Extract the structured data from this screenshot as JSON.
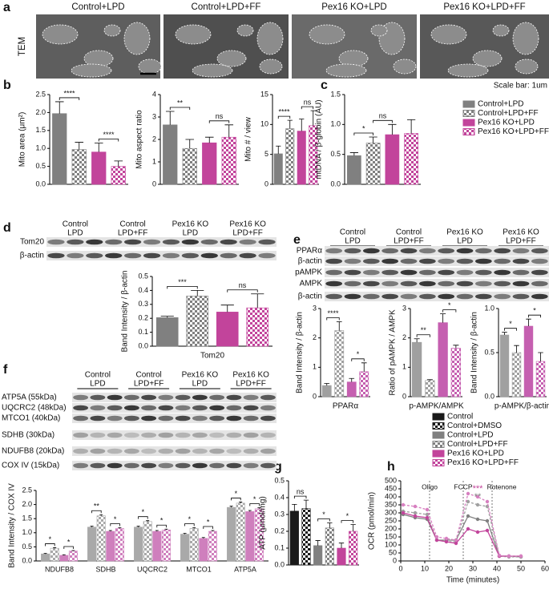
{
  "figure": {
    "panel_labels": [
      "a",
      "b",
      "c",
      "d",
      "e",
      "f",
      "g",
      "h"
    ],
    "tem": {
      "label": "TEM",
      "titles": [
        "Control+LPD",
        "Control+LPD+FF",
        "Pex16 KO+LPD",
        "Pex16 KO+LPD+FF"
      ],
      "scale_note": "Scale bar: 1um"
    },
    "legend_bc": [
      {
        "name": "Control+LPD",
        "color": "#808080",
        "pattern": "solid"
      },
      {
        "name": "Control+LPD+FF",
        "color": "#808080",
        "pattern": "checker"
      },
      {
        "name": "Pex16 KO+LPD",
        "color": "#c2449b",
        "pattern": "solid"
      },
      {
        "name": "Pex16 KO+LPD+FF",
        "color": "#c2449b",
        "pattern": "checker"
      }
    ],
    "legend_gh": [
      {
        "name": "Control",
        "color": "#1a1a1a",
        "pattern": "solid"
      },
      {
        "name": "Control+DMSO",
        "color": "#1a1a1a",
        "pattern": "checker"
      },
      {
        "name": "Control+LPD",
        "color": "#808080",
        "pattern": "solid"
      },
      {
        "name": "Control+LPD+FF",
        "color": "#808080",
        "pattern": "checker"
      },
      {
        "name": "Pex16 KO+LPD",
        "color": "#c2449b",
        "pattern": "solid"
      },
      {
        "name": "Pex16 KO+LPD+FF",
        "color": "#c2449b",
        "pattern": "checker"
      }
    ],
    "blot_d": {
      "lanes": [
        [
          "Control",
          "LPD"
        ],
        [
          "Control",
          "LPD+FF"
        ],
        [
          "Pex16 KO",
          "LPD"
        ],
        [
          "Pex16 KO",
          "LPD+FF"
        ]
      ],
      "rows": [
        "Tom20",
        "β-actin"
      ]
    },
    "blot_e": {
      "lanes": [
        [
          "Control",
          "LPD"
        ],
        [
          "Control",
          "LPD+FF"
        ],
        [
          "Pex16 KO",
          "LPD"
        ],
        [
          "Pex16 KO",
          "LPD+FF"
        ]
      ],
      "rows": [
        "PPARα",
        "β-actin",
        "pAMPK",
        "AMPK",
        "β-actin"
      ]
    },
    "blot_f": {
      "lanes": [
        [
          "Control",
          "LPD"
        ],
        [
          "Control",
          "LPD+FF"
        ],
        [
          "Pex16 KO",
          "LPD"
        ],
        [
          "Pex16 KO",
          "LPD+FF"
        ]
      ],
      "rows": [
        "ATP5A (55kDa)",
        "UQCRC2 (48kDa)",
        "MTCO1 (40kDa)",
        "SDHB (30kDa)",
        "NDUFB8 (20kDa)",
        "COX IV (15kDa)"
      ]
    }
  },
  "chart_data": [
    {
      "type": "bar",
      "ylabel": "Mito area (μm²)",
      "values": [
        1.97,
        0.97,
        0.9,
        0.5
      ],
      "errors": [
        0.33,
        0.2,
        0.25,
        0.15
      ],
      "colors": [
        "#808080",
        "#808080",
        "#c2449b",
        "#c2449b"
      ],
      "patterns": [
        "solid",
        "checker",
        "solid",
        "checker"
      ],
      "ylim": [
        0,
        2.5
      ],
      "yticks": [
        {
          "value": 0,
          "label": "0.0"
        },
        0.5,
        {
          "value": 1,
          "label": "1.0"
        },
        1.5,
        {
          "value": 2,
          "label": "2.0"
        },
        2.5
      ],
      "annotations": [
        {
          "text": "****",
          "between": [
            0,
            1
          ]
        },
        {
          "text": "****",
          "between": [
            2,
            3
          ]
        }
      ]
    },
    {
      "type": "bar",
      "ylabel": "Mito aspect ratio",
      "values": [
        2.65,
        1.6,
        1.85,
        2.1
      ],
      "errors": [
        0.6,
        0.4,
        0.25,
        0.55
      ],
      "colors": [
        "#808080",
        "#808080",
        "#c2449b",
        "#c2449b"
      ],
      "patterns": [
        "solid",
        "checker",
        "solid",
        "checker"
      ],
      "ylim": [
        0,
        4
      ],
      "yticks": [
        0,
        1,
        2,
        3,
        4
      ],
      "annotations": [
        {
          "text": "**",
          "between": [
            0,
            1
          ]
        },
        {
          "text": "ns",
          "between": [
            2,
            3
          ]
        }
      ]
    },
    {
      "type": "bar",
      "ylabel": "Mito # / view",
      "values": [
        5.1,
        9.3,
        8.9,
        9.8
      ],
      "errors": [
        1.3,
        1.4,
        2.0,
        2.5
      ],
      "colors": [
        "#808080",
        "#808080",
        "#c2449b",
        "#c2449b"
      ],
      "patterns": [
        "solid",
        "checker",
        "solid",
        "checker"
      ],
      "ylim": [
        0,
        15
      ],
      "yticks": [
        0,
        5,
        10,
        15
      ],
      "annotations": [
        {
          "text": "****",
          "between": [
            0,
            1
          ]
        },
        {
          "text": "ns",
          "between": [
            2,
            3
          ]
        }
      ]
    },
    {
      "type": "bar",
      "ylabel": "mtDNA / β-globin (AU)",
      "values": [
        0.48,
        0.69,
        0.83,
        0.85
      ],
      "errors": [
        0.05,
        0.1,
        0.17,
        0.23
      ],
      "colors": [
        "#808080",
        "#808080",
        "#c2449b",
        "#c2449b"
      ],
      "patterns": [
        "solid",
        "checker",
        "solid",
        "checker"
      ],
      "ylim": [
        0,
        1.5
      ],
      "yticks": [
        {
          "value": 0,
          "label": "0.0"
        },
        0.5,
        {
          "value": 1,
          "label": "1.0"
        },
        1.5
      ],
      "annotations": [
        {
          "text": "*",
          "between": [
            0,
            1
          ]
        },
        {
          "text": "ns",
          "between": [
            1,
            2
          ]
        }
      ]
    },
    {
      "type": "bar",
      "ylabel": "Band Intensity / β-actin",
      "xlabel": "Tom20",
      "values": [
        0.205,
        0.36,
        0.245,
        0.275
      ],
      "errors": [
        0.01,
        0.04,
        0.05,
        0.1
      ],
      "colors": [
        "#808080",
        "#808080",
        "#c2449b",
        "#c2449b"
      ],
      "patterns": [
        "solid",
        "checker",
        "solid",
        "checker"
      ],
      "ylim": [
        0,
        0.5
      ],
      "yticks": [
        {
          "value": 0,
          "label": "0.0"
        },
        0.1,
        0.2,
        0.3,
        0.4,
        0.5
      ],
      "annotations": [
        {
          "text": "***",
          "between": [
            0,
            1
          ]
        },
        {
          "text": "ns",
          "between": [
            2,
            3
          ]
        }
      ]
    },
    {
      "type": "bar",
      "ylabel": "Band Intensity / β-actin",
      "xlabel": "PPARα",
      "values": [
        0.38,
        2.25,
        0.5,
        0.85
      ],
      "errors": [
        0.07,
        0.3,
        0.12,
        0.3
      ],
      "colors": [
        "#a0a0a0",
        "#a0a0a0",
        "#c55fb0",
        "#c55fb0"
      ],
      "patterns": [
        "solid",
        "checker",
        "solid",
        "checker"
      ],
      "ylim": [
        0,
        3
      ],
      "yticks": [
        0,
        1,
        2,
        3
      ],
      "annotations": [
        {
          "text": "****",
          "between": [
            0,
            1
          ]
        },
        {
          "text": "*",
          "between": [
            2,
            3
          ]
        }
      ]
    },
    {
      "type": "bar",
      "ylabel": "Ratio of pAMPK / AMPK",
      "xlabel": "p-AMPK/AMPK",
      "values": [
        1.85,
        0.55,
        2.52,
        1.65
      ],
      "errors": [
        0.12,
        0.03,
        0.3,
        0.1
      ],
      "colors": [
        "#a0a0a0",
        "#a0a0a0",
        "#c55fb0",
        "#c55fb0"
      ],
      "patterns": [
        "solid",
        "checker",
        "solid",
        "checker"
      ],
      "ylim": [
        0,
        3
      ],
      "yticks": [
        0,
        1,
        2,
        3
      ],
      "annotations": [
        {
          "text": "**",
          "between": [
            0,
            1
          ]
        },
        {
          "text": "*",
          "between": [
            2,
            3
          ]
        }
      ]
    },
    {
      "type": "bar",
      "ylabel": "Band Intensity / β-actin",
      "xlabel": "p-AMPK/β-actin",
      "values": [
        0.7,
        0.5,
        0.8,
        0.4
      ],
      "errors": [
        0.03,
        0.08,
        0.08,
        0.1
      ],
      "colors": [
        "#a0a0a0",
        "#a0a0a0",
        "#c55fb0",
        "#c55fb0"
      ],
      "patterns": [
        "solid",
        "checker",
        "solid",
        "checker"
      ],
      "ylim": [
        0,
        1
      ],
      "yticks": [
        {
          "value": 0,
          "label": "0.0"
        },
        0.5,
        {
          "value": 1,
          "label": "1.0"
        }
      ],
      "annotations": [
        {
          "text": "*",
          "between": [
            0,
            1
          ]
        },
        {
          "text": "*",
          "between": [
            2,
            3
          ]
        }
      ]
    },
    {
      "type": "grouped_bar",
      "ylabel": "Band Intensity / COX IV",
      "categories": [
        "NDUFB8",
        "SDHB",
        "UQCRC2",
        "MTCO1",
        "ATP5A"
      ],
      "series": [
        {
          "color": "#a9a9a9",
          "pattern": "solid",
          "values": [
            0.25,
            1.2,
            1.2,
            0.95,
            1.9
          ],
          "errors": [
            0.02,
            0.03,
            0.03,
            0.03,
            0.04
          ]
        },
        {
          "color": "#a9a9a9",
          "pattern": "checker",
          "values": [
            0.45,
            1.6,
            1.4,
            1.15,
            2.05
          ],
          "errors": [
            0.02,
            0.04,
            0.03,
            0.03,
            0.04
          ]
        },
        {
          "color": "#cf7fbd",
          "pattern": "solid",
          "values": [
            0.2,
            1.05,
            1.05,
            0.8,
            1.75
          ],
          "errors": [
            0.02,
            0.03,
            0.03,
            0.03,
            0.04
          ]
        },
        {
          "color": "#cf7fbd",
          "pattern": "checker",
          "values": [
            0.35,
            1.15,
            1.1,
            1.05,
            1.85
          ],
          "errors": [
            0.02,
            0.03,
            0.03,
            0.03,
            0.04
          ]
        }
      ],
      "ylim": [
        0,
        2.5
      ],
      "yticks": [
        {
          "value": 0,
          "label": "0.0"
        },
        0.5,
        {
          "value": 1,
          "label": "1.0"
        },
        1.5,
        {
          "value": 2,
          "label": "2.0"
        },
        2.5
      ],
      "annotations": [
        {
          "text": "*",
          "group": 0,
          "between": [
            0,
            1
          ]
        },
        {
          "text": "*",
          "group": 0,
          "between": [
            2,
            3
          ]
        },
        {
          "text": "**",
          "group": 1,
          "between": [
            0,
            1
          ]
        },
        {
          "text": "*",
          "group": 1,
          "between": [
            2,
            3
          ]
        },
        {
          "text": "*",
          "group": 2,
          "between": [
            0,
            1
          ]
        },
        {
          "text": "*",
          "group": 2,
          "between": [
            2,
            3
          ]
        },
        {
          "text": "*",
          "group": 3,
          "between": [
            0,
            1
          ]
        },
        {
          "text": "*",
          "group": 3,
          "between": [
            2,
            3
          ]
        },
        {
          "text": "*",
          "group": 4,
          "between": [
            0,
            1
          ]
        },
        {
          "text": "*",
          "group": 4,
          "between": [
            2,
            3
          ]
        }
      ]
    },
    {
      "type": "bar",
      "ylabel": "ATP (µmol/mg)",
      "values": [
        0.32,
        0.335,
        0.115,
        0.22,
        0.1,
        0.2
      ],
      "errors": [
        0.04,
        0.05,
        0.03,
        0.03,
        0.03,
        0.04
      ],
      "colors": [
        "#1a1a1a",
        "#1a1a1a",
        "#808080",
        "#808080",
        "#c2449b",
        "#c2449b"
      ],
      "patterns": [
        "solid",
        "checker",
        "solid",
        "checker",
        "solid",
        "checker"
      ],
      "ylim": [
        0,
        0.5
      ],
      "yticks": [
        {
          "value": 0,
          "label": "0.0"
        },
        0.1,
        0.2,
        0.3,
        0.4,
        0.5
      ],
      "annotations": [
        {
          "text": "ns",
          "between": [
            0,
            1
          ]
        },
        {
          "text": "*",
          "between": [
            2,
            3
          ]
        },
        {
          "text": "*",
          "between": [
            4,
            5
          ]
        }
      ]
    },
    {
      "type": "line",
      "ylabel": "OCR (pmol/min)",
      "xlabel": "Time (minutes)",
      "x": [
        1,
        6,
        11,
        15,
        19,
        23,
        28,
        32,
        36,
        41,
        45,
        50
      ],
      "series": [
        {
          "color": "#808080",
          "dashed": false,
          "values": [
            290,
            270,
            260,
            130,
            130,
            130,
            280,
            260,
            250,
            30,
            30,
            25
          ]
        },
        {
          "color": "#a0a0a0",
          "dashed": true,
          "values": [
            310,
            300,
            290,
            130,
            120,
            120,
            370,
            350,
            340,
            30,
            25,
            25
          ]
        },
        {
          "color": "#c2449b",
          "dashed": false,
          "values": [
            300,
            280,
            270,
            130,
            120,
            110,
            200,
            180,
            190,
            30,
            30,
            30
          ]
        },
        {
          "color": "#d77fc0",
          "dashed": true,
          "values": [
            350,
            340,
            320,
            150,
            140,
            130,
            420,
            400,
            370,
            35,
            30,
            30
          ]
        }
      ],
      "events": [
        {
          "label": "Oligo",
          "x": 12
        },
        {
          "label": "FCCP",
          "x": 26
        },
        {
          "label": "Rotenone",
          "x": 38
        }
      ],
      "annotations": [
        {
          "text": "***",
          "color": "#c2449b",
          "series": 3,
          "index": 7
        },
        {
          "text": "**",
          "color": "#808080",
          "series": 1,
          "index": 7
        }
      ],
      "xlim": [
        0,
        60
      ],
      "xticks": [
        0,
        10,
        20,
        30,
        40,
        50,
        60
      ],
      "ylim": [
        0,
        500
      ],
      "yticks": [
        0,
        50,
        100,
        150,
        200,
        250,
        300,
        350,
        400,
        450,
        500
      ]
    }
  ]
}
